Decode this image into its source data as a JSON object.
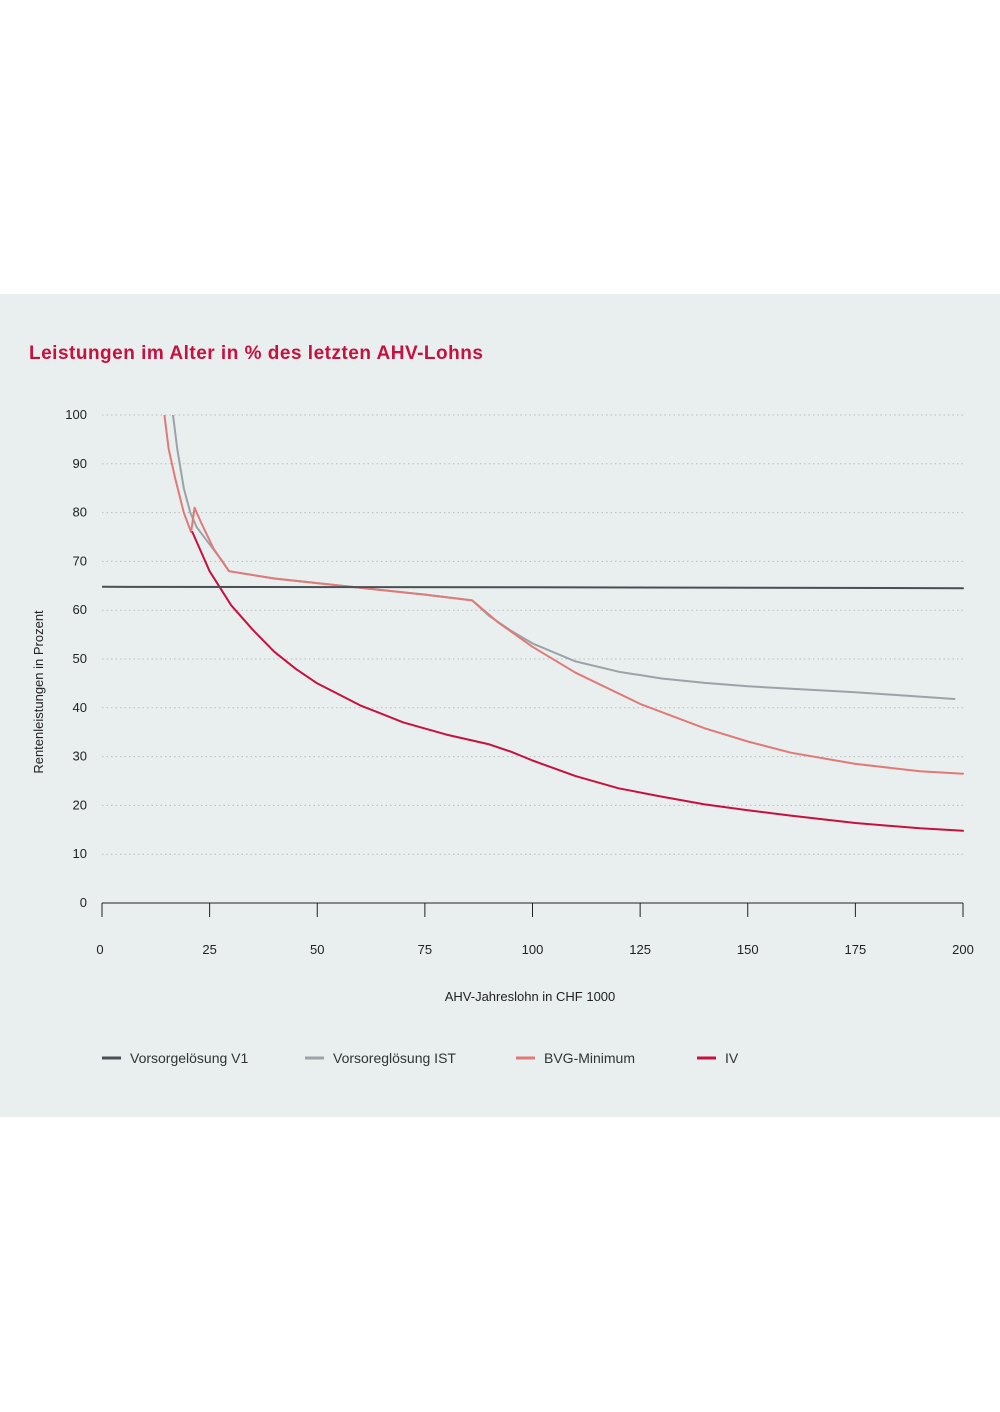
{
  "chart_data": {
    "type": "line",
    "title": "Leistungen im Alter in % des letzten AHV-Lohns",
    "xlabel": "AHV-Jahreslohn in CHF 1000",
    "ylabel": "Rentenleistungen in Prozent",
    "xlim": [
      0,
      200
    ],
    "ylim": [
      0,
      100
    ],
    "x_ticks": [
      "0",
      "25",
      "50",
      "75",
      "100",
      "125",
      "150",
      "175",
      "200"
    ],
    "y_ticks": [
      "0",
      "10",
      "20",
      "30",
      "40",
      "50",
      "60",
      "70",
      "80",
      "90",
      "100"
    ],
    "grid": "horizontal dotted",
    "legend_position": "bottom",
    "series": [
      {
        "name": "Vorsorgelösung V1",
        "color": "#4a4f55",
        "points": [
          [
            0,
            64.8
          ],
          [
            100,
            64.7
          ],
          [
            200,
            64.5
          ]
        ]
      },
      {
        "name": "Vorsoreglösung IST",
        "color": "#9aa3a8",
        "points": [
          [
            16.5,
            100
          ],
          [
            17.5,
            93
          ],
          [
            19,
            85
          ],
          [
            20.5,
            80
          ],
          [
            22,
            77
          ],
          [
            25,
            73.5
          ],
          [
            28,
            70
          ],
          [
            29.5,
            68
          ],
          [
            40,
            66.5
          ],
          [
            60,
            64.6
          ],
          [
            75,
            63.2
          ],
          [
            86,
            62
          ],
          [
            90,
            58.8
          ],
          [
            95,
            55.8
          ],
          [
            100,
            53.2
          ],
          [
            110,
            49.5
          ],
          [
            120,
            47.4
          ],
          [
            130,
            46
          ],
          [
            140,
            45.1
          ],
          [
            150,
            44.4
          ],
          [
            175,
            43.2
          ],
          [
            198,
            41.8
          ]
        ]
      },
      {
        "name": "BVG-Minimum",
        "color": "#e07a78",
        "points": [
          [
            14.5,
            100
          ],
          [
            15.5,
            93
          ],
          [
            17,
            87
          ],
          [
            19,
            80
          ],
          [
            20.7,
            76
          ],
          [
            21.5,
            81
          ],
          [
            23,
            78
          ],
          [
            26,
            72.5
          ],
          [
            29.5,
            68
          ],
          [
            40,
            66.5
          ],
          [
            60,
            64.6
          ],
          [
            75,
            63.2
          ],
          [
            86,
            62
          ],
          [
            92,
            57.5
          ],
          [
            100,
            52.5
          ],
          [
            110,
            47.2
          ],
          [
            125,
            40.8
          ],
          [
            140,
            35.8
          ],
          [
            150,
            33.1
          ],
          [
            160,
            30.8
          ],
          [
            175,
            28.5
          ],
          [
            190,
            27
          ],
          [
            200,
            26.5
          ]
        ]
      },
      {
        "name": "IV",
        "color": "#c8103e",
        "points": [
          [
            21,
            76
          ],
          [
            25,
            68
          ],
          [
            30,
            61
          ],
          [
            35,
            56
          ],
          [
            40,
            51.5
          ],
          [
            45,
            48
          ],
          [
            50,
            45
          ],
          [
            60,
            40.5
          ],
          [
            70,
            37
          ],
          [
            80,
            34.5
          ],
          [
            90,
            32.5
          ],
          [
            95,
            31
          ],
          [
            100,
            29.2
          ],
          [
            110,
            26
          ],
          [
            120,
            23.5
          ],
          [
            130,
            21.8
          ],
          [
            140,
            20.2
          ],
          [
            150,
            19
          ],
          [
            160,
            17.9
          ],
          [
            175,
            16.4
          ],
          [
            190,
            15.3
          ],
          [
            200,
            14.8
          ]
        ]
      }
    ]
  }
}
